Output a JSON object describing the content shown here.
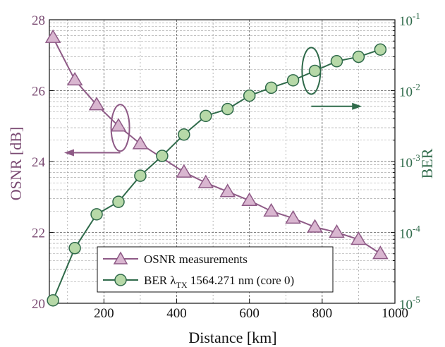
{
  "chart_data": {
    "type": "line",
    "xlabel": "Distance [km]",
    "ylabel_left": "OSNR [dB]",
    "ylabel_right": "BER",
    "xlim": [
      50,
      1000
    ],
    "ylim_left": [
      20,
      28
    ],
    "ylim_right": [
      1e-05,
      0.1
    ],
    "right_scale": "log",
    "grid": true,
    "x_ticks": [
      200,
      400,
      600,
      800,
      1000
    ],
    "y_left_ticks": [
      20,
      22,
      24,
      26,
      28
    ],
    "y_right_ticks": [
      {
        "base": "10",
        "exp": "-5",
        "value": 1e-05
      },
      {
        "base": "10",
        "exp": "-4",
        "value": 0.0001
      },
      {
        "base": "10",
        "exp": "-3",
        "value": 0.001
      },
      {
        "base": "10",
        "exp": "-2",
        "value": 0.01
      },
      {
        "base": "10",
        "exp": "-1",
        "value": 0.1
      }
    ],
    "legend_position": "bottom-left",
    "series": [
      {
        "name": "OSNR measurements",
        "axis": "left",
        "marker": "triangle",
        "color": "#8e5a86",
        "fill": "#d9b6d0",
        "x": [
          60,
          120,
          180,
          240,
          300,
          420,
          480,
          540,
          600,
          660,
          720,
          780,
          840,
          900,
          960
        ],
        "values": [
          27.5,
          26.3,
          25.6,
          25.0,
          24.5,
          23.7,
          23.4,
          23.15,
          22.9,
          22.6,
          22.4,
          22.15,
          22.0,
          21.8,
          21.4
        ]
      },
      {
        "name": "BER λTX 1564.271 nm (core 0)",
        "legend_parts": {
          "prefix": "BER λ",
          "sub": "TX",
          "suffix": " 1564.271 nm (core 0)"
        },
        "axis": "right",
        "marker": "circle",
        "color": "#2f6a4a",
        "fill": "#b7d9a8",
        "x": [
          60,
          120,
          180,
          240,
          300,
          360,
          420,
          480,
          540,
          600,
          660,
          720,
          780,
          840,
          900,
          960
        ],
        "values": [
          1.1e-05,
          6e-05,
          0.00018,
          0.00027,
          0.00063,
          0.0012,
          0.0024,
          0.0044,
          0.0055,
          0.0085,
          0.011,
          0.014,
          0.019,
          0.026,
          0.03,
          0.038
        ]
      }
    ]
  }
}
